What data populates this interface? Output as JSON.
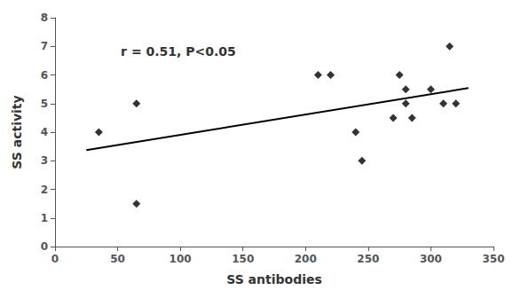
{
  "chart_data": {
    "type": "scatter",
    "xlabel": "SS antibodies",
    "ylabel": "SS activity",
    "annotation": "r = 0.51, P<0.05",
    "xlim": [
      0,
      350
    ],
    "ylim": [
      0,
      8
    ],
    "xticks": [
      0,
      50,
      100,
      150,
      200,
      250,
      300,
      350
    ],
    "yticks": [
      0,
      1,
      2,
      3,
      4,
      5,
      6,
      7,
      8
    ],
    "grid": false,
    "series": [
      {
        "type": "scatter",
        "color": "black",
        "marker": "diamond",
        "x": [
          35,
          65,
          65,
          210,
          220,
          240,
          245,
          270,
          275,
          280,
          280,
          285,
          300,
          310,
          315,
          320
        ],
        "values": [
          4.0,
          5.0,
          1.5,
          6.0,
          6.0,
          4.0,
          3.0,
          4.5,
          6.0,
          5.0,
          5.5,
          4.5,
          5.5,
          5.0,
          7.0,
          5.0
        ]
      },
      {
        "type": "line",
        "color": "black",
        "line_style": "solid",
        "x": [
          25,
          330
        ],
        "values": [
          3.3698,
          5.5396
        ]
      }
    ]
  }
}
